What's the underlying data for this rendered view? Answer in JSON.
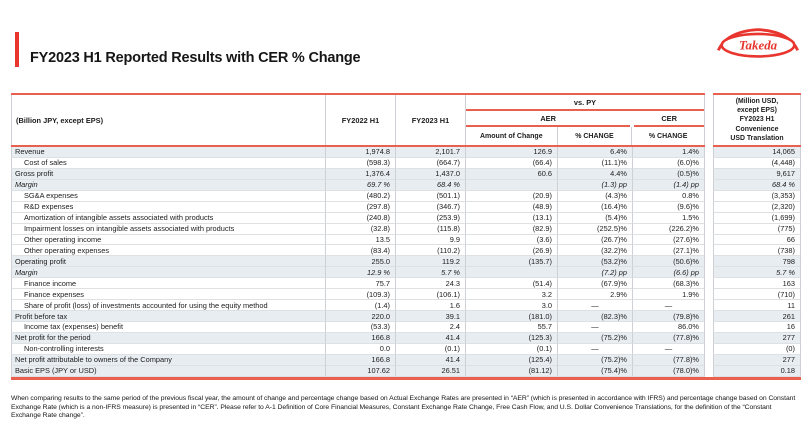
{
  "page": {
    "title": "FY2023 H1 Reported Results with CER % Change",
    "logo_text": "Takeda",
    "accent_red": "#e8352e",
    "rule_red": "#e9604f",
    "row_shade": "#e8edf2"
  },
  "table": {
    "header": {
      "col_label": "(Billion JPY, except EPS)",
      "col_fy2022": "FY2022 H1",
      "col_fy2023": "FY2023 H1",
      "vs_py": "vs. PY",
      "aer": "AER",
      "cer": "CER",
      "amount_of_change": "Amount of Change",
      "pct_change_aer": "% CHANGE",
      "pct_change_cer": "% CHANGE",
      "usd_box": "(Million USD,\nexcept EPS)\nFY2023 H1\nConvenience\nUSD Translation"
    },
    "rows": [
      {
        "label": "Revenue",
        "indent": false,
        "italic": false,
        "shaded": true,
        "values": [
          "1,974.8",
          "2,101.7",
          "126.9",
          "6.4%",
          "1.4%",
          "14,065"
        ]
      },
      {
        "label": "Cost of sales",
        "indent": true,
        "italic": false,
        "shaded": false,
        "values": [
          "(598.3)",
          "(664.7)",
          "(66.4)",
          "(11.1)%",
          "(6.0)%",
          "(4,448)"
        ]
      },
      {
        "label": "Gross profit",
        "indent": false,
        "italic": false,
        "shaded": true,
        "values": [
          "1,376.4",
          "1,437.0",
          "60.6",
          "4.4%",
          "(0.5)%",
          "9,617"
        ]
      },
      {
        "label": "Margin",
        "indent": false,
        "italic": true,
        "shaded": true,
        "values": [
          "69.7 %",
          "68.4 %",
          "",
          "(1.3) pp",
          "(1.4) pp",
          "68.4 %"
        ]
      },
      {
        "label": "SG&A expenses",
        "indent": true,
        "italic": false,
        "shaded": false,
        "values": [
          "(480.2)",
          "(501.1)",
          "(20.9)",
          "(4.3)%",
          "0.8%",
          "(3,353)"
        ]
      },
      {
        "label": "R&D expenses",
        "indent": true,
        "italic": false,
        "shaded": false,
        "values": [
          "(297.8)",
          "(346.7)",
          "(48.9)",
          "(16.4)%",
          "(9.6)%",
          "(2,320)"
        ]
      },
      {
        "label": "Amortization of intangible assets associated with products",
        "indent": true,
        "italic": false,
        "shaded": false,
        "values": [
          "(240.8)",
          "(253.9)",
          "(13.1)",
          "(5.4)%",
          "1.5%",
          "(1,699)"
        ]
      },
      {
        "label": "Impairment losses on intangible assets associated with products",
        "indent": true,
        "italic": false,
        "shaded": false,
        "values": [
          "(32.8)",
          "(115.8)",
          "(82.9)",
          "(252.5)%",
          "(226.2)%",
          "(775)"
        ]
      },
      {
        "label": "Other operating income",
        "indent": true,
        "italic": false,
        "shaded": false,
        "values": [
          "13.5",
          "9.9",
          "(3.6)",
          "(26.7)%",
          "(27.6)%",
          "66"
        ]
      },
      {
        "label": "Other operating expenses",
        "indent": true,
        "italic": false,
        "shaded": false,
        "values": [
          "(83.4)",
          "(110.2)",
          "(26.9)",
          "(32.2)%",
          "(27.1)%",
          "(738)"
        ]
      },
      {
        "label": "Operating profit",
        "indent": false,
        "italic": false,
        "shaded": true,
        "values": [
          "255.0",
          "119.2",
          "(135.7)",
          "(53.2)%",
          "(50.6)%",
          "798"
        ]
      },
      {
        "label": "Margin",
        "indent": false,
        "italic": true,
        "shaded": true,
        "values": [
          "12.9 %",
          "5.7 %",
          "",
          "(7.2) pp",
          "(6.6) pp",
          "5.7 %"
        ]
      },
      {
        "label": "Finance income",
        "indent": true,
        "italic": false,
        "shaded": false,
        "values": [
          "75.7",
          "24.3",
          "(51.4)",
          "(67.9)%",
          "(68.3)%",
          "163"
        ]
      },
      {
        "label": "Finance expenses",
        "indent": true,
        "italic": false,
        "shaded": false,
        "values": [
          "(109.3)",
          "(106.1)",
          "3.2",
          "2.9%",
          "1.9%",
          "(710)"
        ]
      },
      {
        "label": "Share of profit (loss) of investments accounted for using the equity method",
        "indent": true,
        "italic": false,
        "shaded": false,
        "values": [
          "(1.4)",
          "1.6",
          "3.0",
          "—",
          "—",
          "11"
        ]
      },
      {
        "label": "Profit before tax",
        "indent": false,
        "italic": false,
        "shaded": true,
        "values": [
          "220.0",
          "39.1",
          "(181.0)",
          "(82.3)%",
          "(79.8)%",
          "261"
        ]
      },
      {
        "label": "Income tax (expenses) benefit",
        "indent": true,
        "italic": false,
        "shaded": false,
        "values": [
          "(53.3)",
          "2.4",
          "55.7",
          "—",
          "86.0%",
          "16"
        ]
      },
      {
        "label": "Net profit for the period",
        "indent": false,
        "italic": false,
        "shaded": true,
        "values": [
          "166.8",
          "41.4",
          "(125.3)",
          "(75.2)%",
          "(77.8)%",
          "277"
        ]
      },
      {
        "label": "Non-controlling interests",
        "indent": true,
        "italic": false,
        "shaded": false,
        "values": [
          "0.0",
          "(0.1)",
          "(0.1)",
          "—",
          "—",
          "(0)"
        ]
      },
      {
        "label": "Net profit attributable to owners of the Company",
        "indent": false,
        "italic": false,
        "shaded": true,
        "values": [
          "166.8",
          "41.4",
          "(125.4)",
          "(75.2)%",
          "(77.8)%",
          "277"
        ]
      },
      {
        "label": "Basic EPS (JPY or USD)",
        "indent": false,
        "italic": false,
        "shaded": true,
        "values": [
          "107.62",
          "26.51",
          "(81.12)",
          "(75.4)%",
          "(78.0)%",
          "0.18"
        ]
      }
    ]
  },
  "footnote": "When comparing results to the same period of the previous fiscal year, the amount of change and percentage change based on Actual Exchange Rates are presented in “AER” (which is presented in accordance with IFRS) and percentage change based on Constant Exchange Rate (which is a non-IFRS measure) is presented in “CER”. Please refer to A-1 Definition of Core Financial Measures, Constant Exchange Rate Change, Free Cash Flow, and U.S. Dollar Convenience Translations, for the definition of the “Constant Exchange Rate change”."
}
